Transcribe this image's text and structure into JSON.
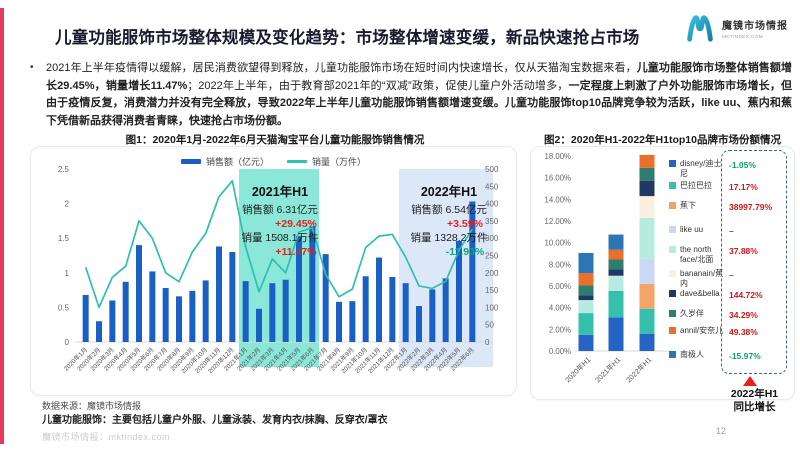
{
  "page": {
    "title": "儿童功能服饰市场整体规模及变化趋势：市场整体增速变缓，新品快速抢占市场",
    "page_number": "12",
    "bullet": "•"
  },
  "logo": {
    "name_cn": "魔镜市场情报",
    "name_en": "MKTINDEX.COM",
    "color": "#2AA7C9"
  },
  "intro": {
    "runs": [
      {
        "t": "2021年上半年疫情得以缓解，居民消费欲望得到释放，儿童功能服饰市场在短时间内快速增长，仅从天猫淘宝数据来看，",
        "b": false
      },
      {
        "t": "儿童功能服饰市场整体销售额增长29.45%，销量增长11.47%",
        "b": true
      },
      {
        "t": "；2022年上半年，由于教育部2021年的“双减”政策，促使儿童户外活动增多，",
        "b": false
      },
      {
        "t": "一定程度上刺激了户外功能服饰市场增长，但由于疫情反复，消费潜力并没有完全释放，导致2022年上半年儿童功能服饰销售额增速变缓。儿童功能服饰top10品牌竞争较为活跃，like uu、蕉内和蕉下凭借新品获得消费者青睐，快速抢占市场份额。",
        "b": true
      }
    ]
  },
  "chart_data": [
    {
      "type": "bar+line",
      "title": "图1：2020年1月-2022年6月天猫淘宝平台儿童功能服饰销售情况",
      "legend": {
        "sales_label": "销售额（亿元）",
        "volume_label": "销量（万件）"
      },
      "categories": [
        "2020年1月",
        "2020年2月",
        "2020年3月",
        "2020年4月",
        "2020年5月",
        "2020年6月",
        "2020年7月",
        "2020年8月",
        "2020年9月",
        "2020年10月",
        "2020年11月",
        "2020年12月",
        "2021年1月",
        "2021年2月",
        "2021年3月",
        "2021年4月",
        "2021年5月",
        "2021年6月",
        "2021年7月",
        "2021年8月",
        "2021年9月",
        "2021年10月",
        "2021年11月",
        "2021年12月",
        "2022年1月",
        "2022年2月",
        "2022年3月",
        "2022年4月",
        "2022年5月",
        "2022年6月"
      ],
      "series": [
        {
          "name": "销售额（亿元）",
          "type": "bar",
          "color": "#1A5FC4",
          "values": [
            0.68,
            0.3,
            0.6,
            0.87,
            1.4,
            1.02,
            0.78,
            0.66,
            0.74,
            0.89,
            1.38,
            1.3,
            0.88,
            0.48,
            0.85,
            0.9,
            1.53,
            1.67,
            1.27,
            0.58,
            0.59,
            0.95,
            1.22,
            0.94,
            0.85,
            0.52,
            0.76,
            0.92,
            1.46,
            2.03
          ]
        },
        {
          "name": "销量（万件）",
          "type": "line",
          "color": "#2FBFAE",
          "values": [
            216,
            100,
            187,
            219,
            350,
            300,
            200,
            174,
            260,
            314,
            420,
            466,
            275,
            145,
            240,
            200,
            318,
            330,
            195,
            131,
            153,
            273,
            306,
            311,
            245,
            162,
            155,
            175,
            265,
            326
          ]
        }
      ],
      "left_axis": {
        "ticks": [
          "0",
          "0.5",
          "1",
          "1.5",
          "2",
          "2.5"
        ],
        "max": 2.5
      },
      "right_axis": {
        "ticks": [
          "0",
          "50",
          "100",
          "150",
          "200",
          "250",
          "300",
          "350",
          "400",
          "450",
          "500"
        ],
        "max": 500
      },
      "highlights": [
        {
          "label": "2021年H1",
          "start_index": 12,
          "end_index": 17,
          "color": "#8BE8D9",
          "extend_right": false,
          "lines": [
            {
              "text": "销售额 6.31亿元",
              "color": "#1A1A1A",
              "growth": false
            },
            {
              "text": "+29.45%",
              "color": "#E02222",
              "growth": true
            },
            {
              "text": "销量 1508.1万件",
              "color": "#1A1A1A",
              "growth": false
            },
            {
              "text": "+11.47%",
              "color": "#E02222",
              "growth": true
            }
          ]
        },
        {
          "label": "2022年H1",
          "start_index": 24,
          "end_index": 29,
          "color": "#DCE8F8",
          "extend_right": true,
          "lines": [
            {
              "text": "销售额 6.54亿元",
              "color": "#1A1A1A",
              "growth": false
            },
            {
              "text": "+3.59%",
              "color": "#E02222",
              "growth": true
            },
            {
              "text": "销量 1328.2万件",
              "color": "#1A1A1A",
              "growth": false
            },
            {
              "text": "-11.93%",
              "color": "#0CA678",
              "growth": true
            }
          ]
        }
      ]
    },
    {
      "type": "stacked-bar",
      "title": "图2：2020年H1-2022年H1top10品牌市场份额情况",
      "categories": [
        "2020年H1",
        "2021年H1",
        "2022年H1"
      ],
      "y_ticks": [
        "18.00%",
        "16.00%",
        "14.00%",
        "12.00%",
        "10.00%",
        "8.00%",
        "6.00%",
        "4.00%",
        "2.00%",
        "0.00%"
      ],
      "ylim": [
        0,
        18
      ],
      "series": [
        {
          "name": "disney/迪士尼",
          "color": "#2563C4",
          "values": [
            1.5,
            3.1,
            1.6
          ],
          "growth": "-1.05%",
          "growth_color": "#0E9E6E"
        },
        {
          "name": "巴拉巴拉",
          "color": "#35BFAD",
          "values": [
            2.0,
            2.45,
            2.3
          ],
          "growth": "17.17%",
          "growth_color": "#D01818"
        },
        {
          "name": "蕉下",
          "color": "#F2A469",
          "values": [
            0.0,
            0.0,
            2.3
          ],
          "growth": "38997.79%",
          "growth_color": "#D01818"
        },
        {
          "name": "like uu",
          "color": "#C9D9F5",
          "values": [
            0.0,
            0.0,
            2.3
          ],
          "growth": "–",
          "growth_color": "#555555"
        },
        {
          "name": "the north face/北面",
          "color": "#B8EBDF",
          "values": [
            1.2,
            1.4,
            3.8
          ],
          "growth": "37.88%",
          "growth_color": "#D01818"
        },
        {
          "name": "bananain/蕉内",
          "color": "#FBEFE0",
          "values": [
            0.0,
            0.0,
            2.0
          ],
          "growth": "–",
          "growth_color": "#555555"
        },
        {
          "name": "dave&bella",
          "color": "#1F3864",
          "values": [
            0.45,
            0.6,
            1.4
          ],
          "growth": "144.72%",
          "growth_color": "#D01818"
        },
        {
          "name": "久岁伴",
          "color": "#2E7D6E",
          "values": [
            0.9,
            0.9,
            1.2
          ],
          "growth": "34.29%",
          "growth_color": "#D01818"
        },
        {
          "name": "annil/安奈儿",
          "color": "#E8702A",
          "values": [
            1.15,
            0.9,
            1.2
          ],
          "growth": "49.38%",
          "growth_color": "#D01818"
        },
        {
          "name": "南极人",
          "color": "#2E75B6",
          "values": [
            1.85,
            1.4,
            0.0
          ],
          "growth": "-15.97%",
          "growth_color": "#0E9E6E"
        }
      ],
      "growth_caption": [
        "2022年H1",
        "同比增长"
      ]
    }
  ],
  "footer": {
    "source": "数据来源：魔镜市场情报",
    "note": "儿童功能服饰：主要包括儿童户外服、儿童泳装、发育内衣/抹胸、反穿衣/罩衣",
    "watermark": "魔镜市场情报：mktindex.com"
  }
}
